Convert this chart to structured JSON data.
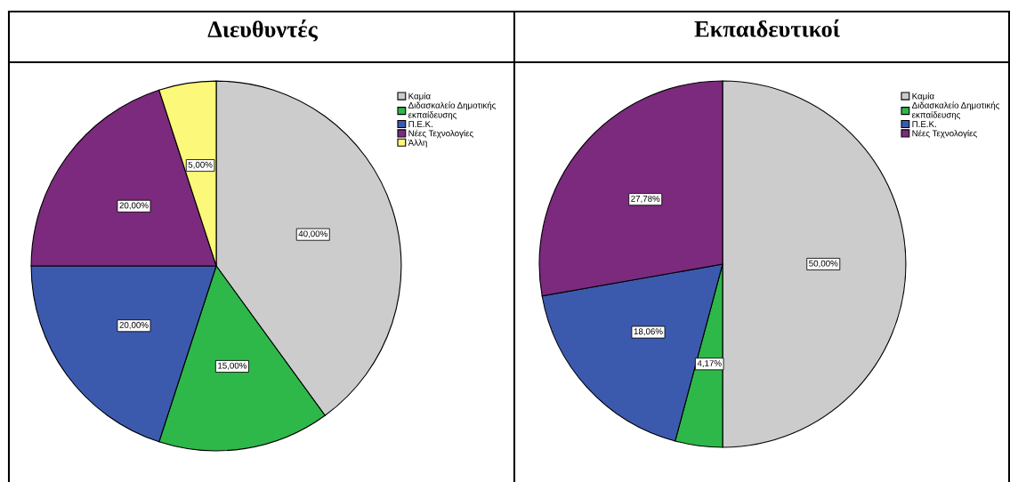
{
  "chart_data": [
    {
      "type": "pie",
      "title": "Διευθυντές",
      "categories": [
        "Καμία",
        "Διδασκαλείο Δημοτικής εκπαίδευσης",
        "Π.Ε.Κ.",
        "Νέες Τεχνολογίες",
        "Άλλη"
      ],
      "values": [
        40,
        15,
        20,
        20,
        5
      ],
      "colors": [
        "#cccccc",
        "#2eb84a",
        "#3c5aad",
        "#7b2a7d",
        "#fbf87a"
      ],
      "value_labels": [
        "40,00%",
        "15,00%",
        "20,00%",
        "20,00%",
        "5,00%"
      ],
      "legend": "top right"
    },
    {
      "type": "pie",
      "title": "Εκπαιδευτικοί",
      "categories": [
        "Καμία",
        "Διδασκαλείο Δημοτικής εκπαίδευσης",
        "Π.Ε.Κ.",
        "Νέες Τεχνολογίες"
      ],
      "values": [
        50,
        4.17,
        18.06,
        27.78
      ],
      "colors": [
        "#cccccc",
        "#2eb84a",
        "#3c5aad",
        "#7b2a7d"
      ],
      "value_labels": [
        "50,00%",
        "4,17%",
        "18,06%",
        "27,78%"
      ],
      "legend": "top right"
    }
  ]
}
